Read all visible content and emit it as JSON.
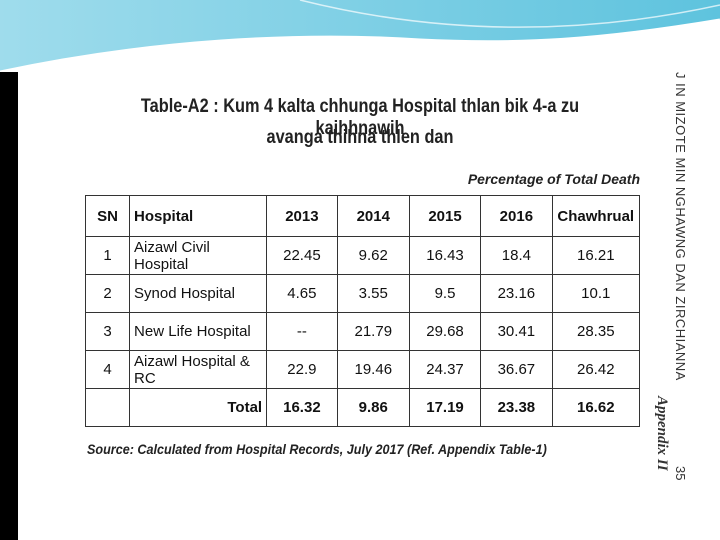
{
  "title": [
    "Table-A2 : Kum 4 kalta chhunga Hospital thlan bik 4-a zu kaihhnawih",
    "avanga thihna thlen dan"
  ],
  "subtitle": "Percentage of Total Death",
  "table": {
    "header": [
      "SN",
      "Hospital",
      "2013",
      "2014",
      "2015",
      "2016",
      "Chawhrual"
    ],
    "rows": [
      [
        "1",
        "Aizawl Civil Hospital",
        "22.45",
        "9.62",
        "16.43",
        "18.4",
        "16.21"
      ],
      [
        "2",
        "Synod Hospital",
        "4.65",
        "3.55",
        "9.5",
        "23.16",
        "10.1"
      ],
      [
        "3",
        "New Life Hospital",
        "--",
        "21.79",
        "29.68",
        "30.41",
        "28.35"
      ],
      [
        "4",
        "Aizawl Hospital & RC",
        "22.9",
        "19.46",
        "24.37",
        "36.67",
        "26.42"
      ]
    ],
    "total": {
      "label": "Total",
      "values": [
        "16.32",
        "9.86",
        "17.19",
        "23.38",
        "16.62"
      ]
    }
  },
  "source": "Source: Calculated from Hospital Records, July 2017 (Ref. Appendix Table-1)",
  "side": {
    "heading": "J IN MIZOTE MIN NGHAWNG DAN ZIRCHIANNA",
    "appendix": "Appendix II",
    "page": "35"
  }
}
